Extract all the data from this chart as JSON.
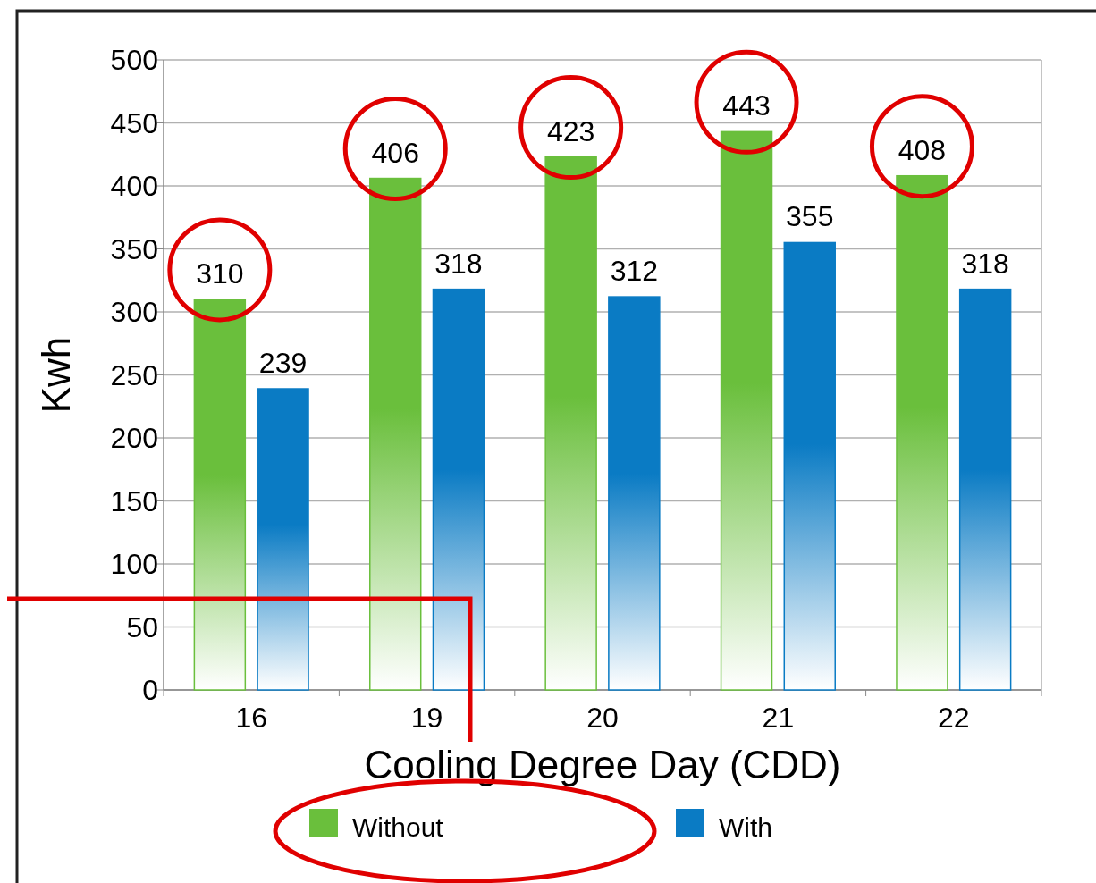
{
  "chart_data": {
    "type": "bar",
    "xlabel": "Cooling Degree Day (CDD)",
    "ylabel": "Kwh",
    "categories": [
      "16",
      "19",
      "20",
      "21",
      "22"
    ],
    "series": [
      {
        "name": "Without",
        "color": "#6abf3c",
        "values": [
          310,
          406,
          423,
          443,
          408
        ]
      },
      {
        "name": "With",
        "color": "#0a7bc4",
        "values": [
          239,
          318,
          312,
          355,
          318
        ]
      }
    ],
    "ylim": [
      0,
      500
    ],
    "yticks": [
      0,
      50,
      100,
      150,
      200,
      250,
      300,
      350,
      400,
      450,
      500
    ],
    "grid": "y",
    "legend": "bottom",
    "data_labels": true
  }
}
